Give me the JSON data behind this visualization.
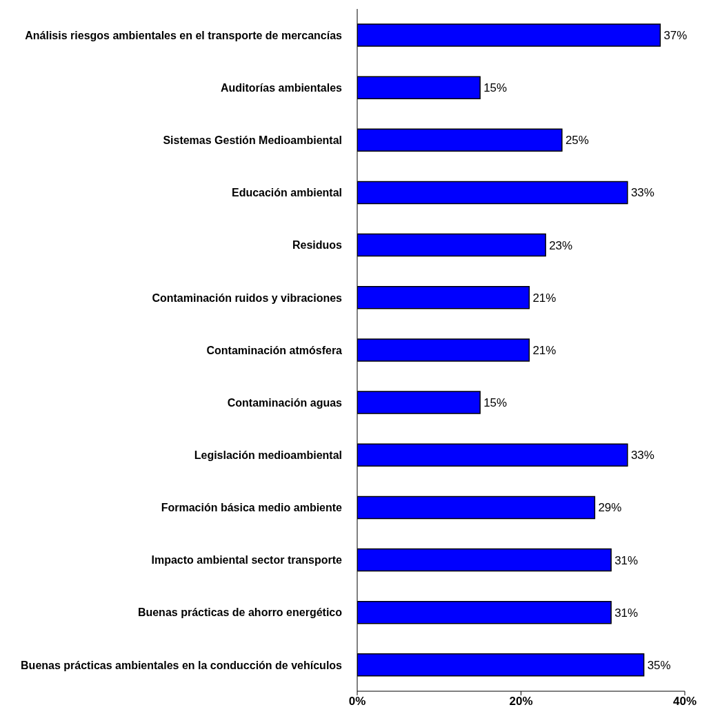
{
  "chart_data": {
    "type": "bar",
    "orientation": "horizontal",
    "categories": [
      "Análisis riesgos ambientales en el transporte de mercancías",
      "Auditorías ambientales",
      "Sistemas Gestión Medioambiental",
      "Educación ambiental",
      "Residuos",
      "Contaminación ruidos y vibraciones",
      "Contaminación atmósfera",
      "Contaminación aguas",
      "Legislación medioambiental",
      "Formación básica medio ambiente",
      "Impacto ambiental sector transporte",
      "Buenas prácticas de ahorro energético",
      "Buenas prácticas ambientales en la conducción de vehículos"
    ],
    "values": [
      37,
      15,
      25,
      33,
      23,
      21,
      21,
      15,
      33,
      29,
      31,
      31,
      35
    ],
    "value_labels": [
      "37%",
      "15%",
      "25%",
      "33%",
      "23%",
      "21%",
      "21%",
      "15%",
      "33%",
      "29%",
      "31%",
      "31%",
      "35%"
    ],
    "color": "#0000ff",
    "xlim": [
      0,
      40
    ],
    "xticks": [
      {
        "value": 0,
        "label": "0%"
      },
      {
        "value": 20,
        "label": "20%"
      },
      {
        "value": 40,
        "label": "40%"
      }
    ],
    "grid": false,
    "legend": false
  }
}
